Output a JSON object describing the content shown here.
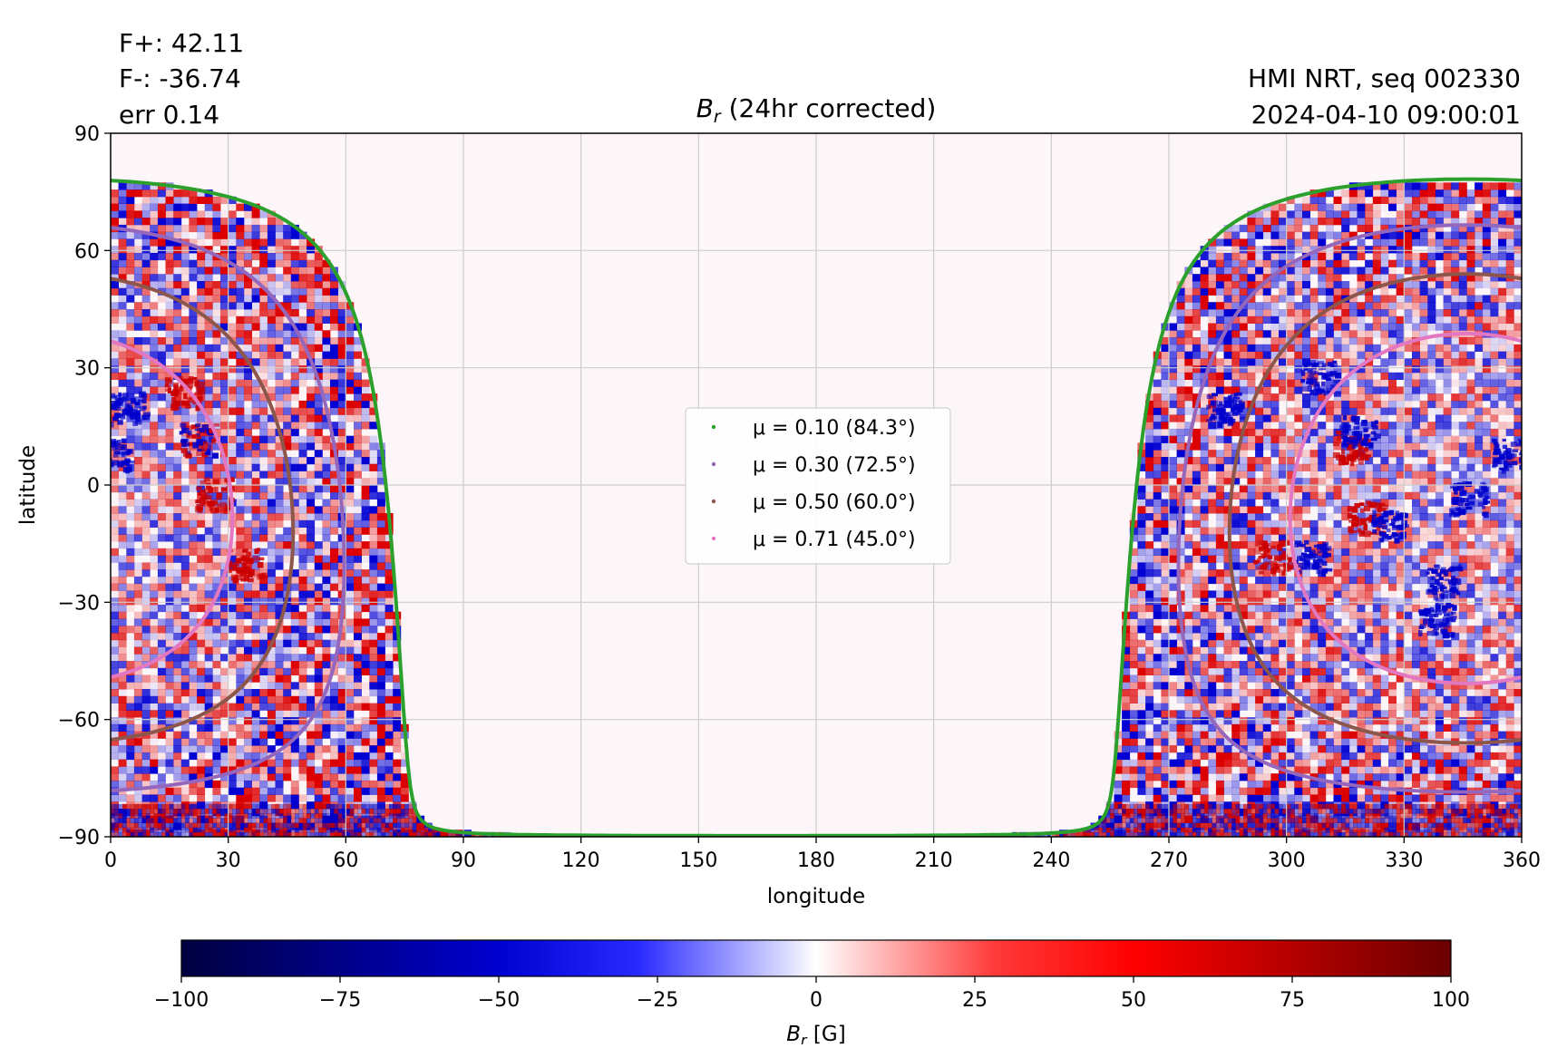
{
  "header": {
    "flux_pos": "F+: 42.11",
    "flux_neg": "F-: -36.74",
    "err": "err 0.14",
    "title_symbol": "B",
    "title_sub": "r",
    "title_rest": " (24hr corrected)",
    "source": "HMI NRT, seq 002330",
    "timestamp": "2024-04-10 09:00:01"
  },
  "colors": {
    "positive": "#cc0000",
    "negative": "#0000cc",
    "background": "#fdf6f8",
    "grid": "#cccccc"
  },
  "chart_data": {
    "type": "heatmap",
    "title": "B_r (24hr corrected)",
    "xlabel": "longitude",
    "ylabel": "latitude",
    "xlim": [
      0,
      360
    ],
    "ylim": [
      -90,
      90
    ],
    "xticks": [
      0,
      30,
      60,
      90,
      120,
      150,
      180,
      210,
      240,
      270,
      300,
      330,
      360
    ],
    "yticks": [
      -90,
      -60,
      -30,
      0,
      30,
      60,
      90
    ],
    "ytick_labels": [
      "−90",
      "−60",
      "−30",
      "0",
      "30",
      "60",
      "90"
    ],
    "grid": true,
    "legend_position": "center",
    "disk_center_longitude": 346,
    "disk_center_latitude": -6,
    "contours": [
      {
        "name": "μ = 0.10 (84.3°)",
        "mu": 0.1,
        "angle_deg": 84.3,
        "color": "#2ca02c"
      },
      {
        "name": "μ = 0.30 (72.5°)",
        "mu": 0.3,
        "angle_deg": 72.5,
        "color": "#9467bd"
      },
      {
        "name": "μ = 0.50 (60.0°)",
        "mu": 0.5,
        "angle_deg": 60.0,
        "color": "#8c564b"
      },
      {
        "name": "μ = 0.71 (45.0°)",
        "mu": 0.71,
        "angle_deg": 45.0,
        "color": "#e377c2"
      }
    ],
    "colorbar": {
      "label_symbol": "B",
      "label_sub": "r",
      "label_unit": " [G]",
      "range": [
        -100,
        100
      ],
      "ticks": [
        -100,
        -75,
        -50,
        -25,
        0,
        25,
        50,
        75,
        100
      ],
      "tick_labels": [
        "−100",
        "−75",
        "−50",
        "−25",
        "0",
        "25",
        "50",
        "75",
        "100"
      ]
    },
    "active_regions": [
      {
        "lon": 4,
        "lat": 20,
        "polarity": "negative"
      },
      {
        "lon": 18,
        "lat": 24,
        "polarity": "positive"
      },
      {
        "lon": 22,
        "lat": 12,
        "polarity": "mixed"
      },
      {
        "lon": 26,
        "lat": -2,
        "polarity": "positive"
      },
      {
        "lon": 34,
        "lat": -20,
        "polarity": "positive"
      },
      {
        "lon": 0,
        "lat": 8,
        "polarity": "negative"
      },
      {
        "lon": 284,
        "lat": 20,
        "polarity": "negative"
      },
      {
        "lon": 308,
        "lat": 28,
        "polarity": "negative"
      },
      {
        "lon": 316,
        "lat": 10,
        "polarity": "positive"
      },
      {
        "lon": 318,
        "lat": 14,
        "polarity": "negative"
      },
      {
        "lon": 320,
        "lat": -8,
        "polarity": "positive"
      },
      {
        "lon": 326,
        "lat": -10,
        "polarity": "negative"
      },
      {
        "lon": 296,
        "lat": -18,
        "polarity": "positive"
      },
      {
        "lon": 306,
        "lat": -18,
        "polarity": "negative"
      },
      {
        "lon": 340,
        "lat": -24,
        "polarity": "negative"
      },
      {
        "lon": 338,
        "lat": -34,
        "polarity": "negative"
      },
      {
        "lon": 356,
        "lat": 8,
        "polarity": "negative"
      },
      {
        "lon": 346,
        "lat": -3,
        "polarity": "negative"
      }
    ]
  }
}
